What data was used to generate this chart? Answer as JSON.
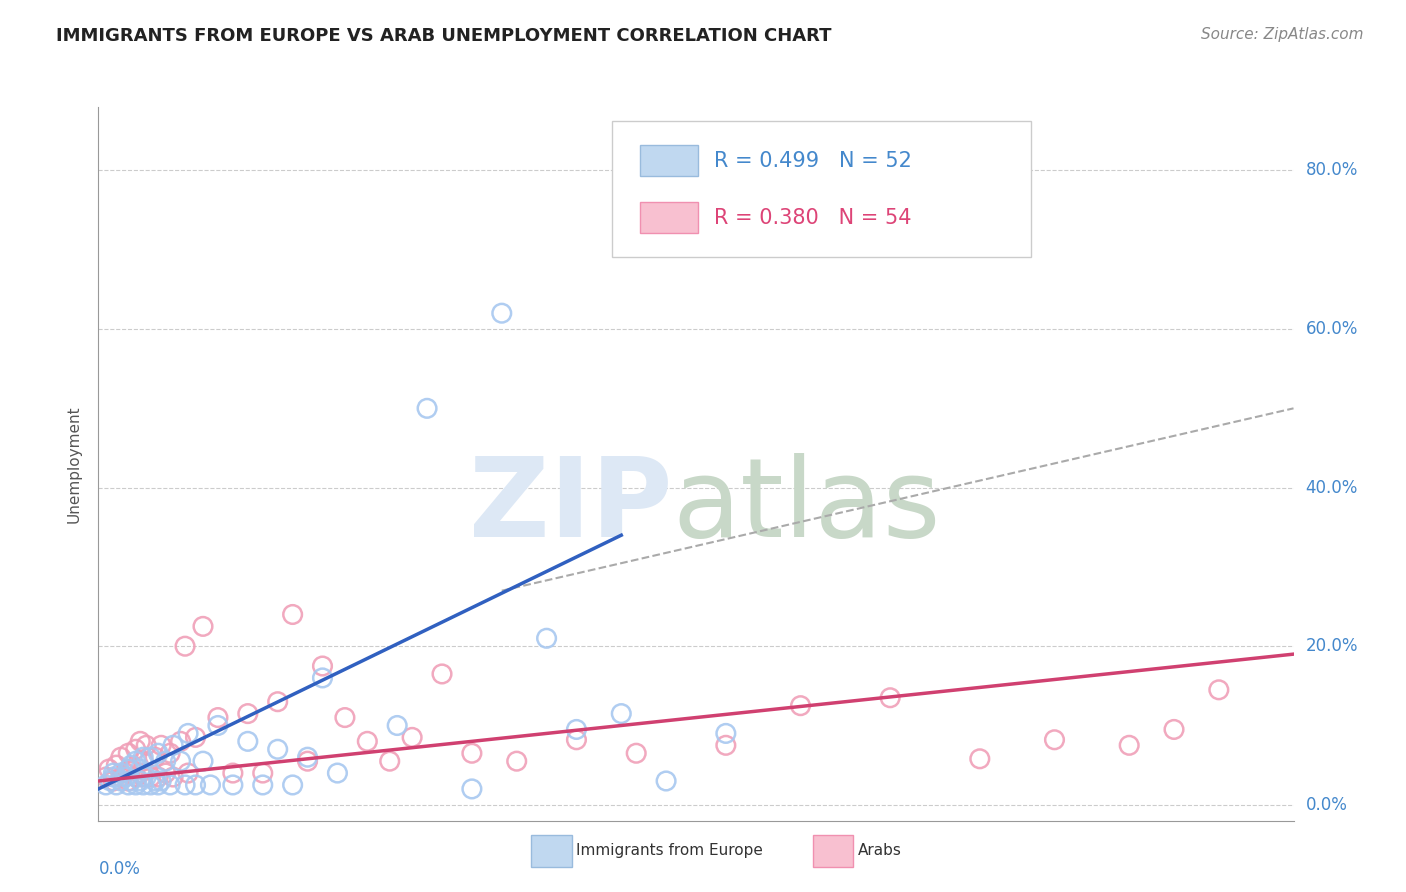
{
  "title": "IMMIGRANTS FROM EUROPE VS ARAB UNEMPLOYMENT CORRELATION CHART",
  "source": "Source: ZipAtlas.com",
  "ylabel": "Unemployment",
  "ytick_values": [
    0.0,
    0.2,
    0.4,
    0.6,
    0.8
  ],
  "xlim": [
    0.0,
    0.8
  ],
  "ylim": [
    -0.02,
    0.88
  ],
  "legend_label_europe": "Immigrants from Europe",
  "legend_label_arabs": "Arabs",
  "blue_scatter_color": "#a8c8f0",
  "pink_scatter_color": "#f0a0b8",
  "blue_line_color": "#3060c0",
  "pink_line_color": "#d04070",
  "dashed_line_color": "#aaaaaa",
  "europe_scatter_x": [
    0.005,
    0.008,
    0.01,
    0.01,
    0.012,
    0.015,
    0.015,
    0.018,
    0.02,
    0.02,
    0.022,
    0.022,
    0.025,
    0.025,
    0.028,
    0.028,
    0.03,
    0.03,
    0.032,
    0.035,
    0.035,
    0.038,
    0.04,
    0.04,
    0.042,
    0.045,
    0.048,
    0.05,
    0.055,
    0.058,
    0.06,
    0.065,
    0.07,
    0.075,
    0.08,
    0.09,
    0.1,
    0.11,
    0.12,
    0.13,
    0.14,
    0.15,
    0.16,
    0.2,
    0.22,
    0.25,
    0.27,
    0.3,
    0.32,
    0.35,
    0.38,
    0.42
  ],
  "europe_scatter_y": [
    0.025,
    0.03,
    0.035,
    0.04,
    0.025,
    0.03,
    0.04,
    0.035,
    0.025,
    0.045,
    0.03,
    0.05,
    0.025,
    0.055,
    0.03,
    0.045,
    0.025,
    0.06,
    0.035,
    0.025,
    0.06,
    0.03,
    0.025,
    0.065,
    0.03,
    0.055,
    0.025,
    0.075,
    0.055,
    0.025,
    0.09,
    0.025,
    0.055,
    0.025,
    0.1,
    0.025,
    0.08,
    0.025,
    0.07,
    0.025,
    0.06,
    0.16,
    0.04,
    0.1,
    0.5,
    0.02,
    0.62,
    0.21,
    0.095,
    0.115,
    0.03,
    0.09
  ],
  "arab_scatter_x": [
    0.005,
    0.007,
    0.01,
    0.012,
    0.015,
    0.015,
    0.018,
    0.02,
    0.02,
    0.022,
    0.025,
    0.025,
    0.028,
    0.028,
    0.03,
    0.03,
    0.032,
    0.035,
    0.038,
    0.04,
    0.042,
    0.045,
    0.048,
    0.05,
    0.055,
    0.058,
    0.06,
    0.065,
    0.07,
    0.08,
    0.09,
    0.1,
    0.11,
    0.12,
    0.13,
    0.14,
    0.15,
    0.165,
    0.18,
    0.195,
    0.21,
    0.23,
    0.25,
    0.28,
    0.32,
    0.36,
    0.42,
    0.47,
    0.53,
    0.59,
    0.64,
    0.69,
    0.72,
    0.75
  ],
  "arab_scatter_y": [
    0.035,
    0.045,
    0.03,
    0.05,
    0.035,
    0.06,
    0.04,
    0.03,
    0.065,
    0.045,
    0.035,
    0.07,
    0.04,
    0.08,
    0.035,
    0.055,
    0.075,
    0.035,
    0.06,
    0.035,
    0.075,
    0.04,
    0.065,
    0.035,
    0.08,
    0.2,
    0.04,
    0.085,
    0.225,
    0.11,
    0.04,
    0.115,
    0.04,
    0.13,
    0.24,
    0.055,
    0.175,
    0.11,
    0.08,
    0.055,
    0.085,
    0.165,
    0.065,
    0.055,
    0.082,
    0.065,
    0.075,
    0.125,
    0.135,
    0.058,
    0.082,
    0.075,
    0.095,
    0.145
  ],
  "europe_trend_x": [
    0.0,
    0.35
  ],
  "europe_trend_y": [
    0.02,
    0.34
  ],
  "arab_trend_x": [
    0.0,
    0.8
  ],
  "arab_trend_y": [
    0.03,
    0.19
  ],
  "dashed_trend_x": [
    0.27,
    0.8
  ],
  "dashed_trend_y": [
    0.27,
    0.5
  ],
  "grid_color": "#cccccc",
  "tick_color": "#4488cc",
  "title_fontsize": 13,
  "source_fontsize": 11,
  "axis_label_fontsize": 11,
  "tick_fontsize": 12,
  "legend_fontsize": 15,
  "watermark_zip_color": "#dde8f5",
  "watermark_atlas_color": "#c8d8c8"
}
